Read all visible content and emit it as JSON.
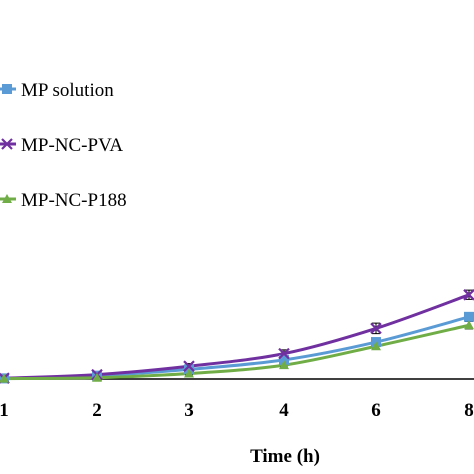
{
  "chart_data": {
    "type": "line",
    "xlabel": "Time (h)",
    "ylabel": "",
    "categories": [
      "1",
      "2",
      "3",
      "4",
      "6",
      "8"
    ],
    "ylim": [
      0,
      100
    ],
    "grid": false,
    "legend_position": "top-left",
    "series": [
      {
        "name": "MP solution",
        "color": "#5b9bd5",
        "marker": "square",
        "values": [
          0.2,
          1.5,
          4.5,
          9.0,
          17.5,
          29.5
        ],
        "errors": [
          0.5,
          0.6,
          0.8,
          1.0,
          1.5,
          2.0
        ]
      },
      {
        "name": "MP-NC-PVA",
        "color": "#7030a0",
        "marker": "x",
        "values": [
          0.3,
          2.0,
          6.0,
          12.0,
          24.0,
          40.0
        ],
        "errors": [
          0.5,
          0.7,
          1.2,
          1.8,
          2.5,
          2.2
        ]
      },
      {
        "name": "MP-NC-P188",
        "color": "#70ad47",
        "marker": "triangle",
        "values": [
          0.1,
          0.5,
          2.5,
          6.5,
          15.5,
          25.5
        ],
        "errors": [
          0.4,
          0.5,
          0.6,
          0.9,
          1.2,
          1.8
        ]
      }
    ]
  }
}
